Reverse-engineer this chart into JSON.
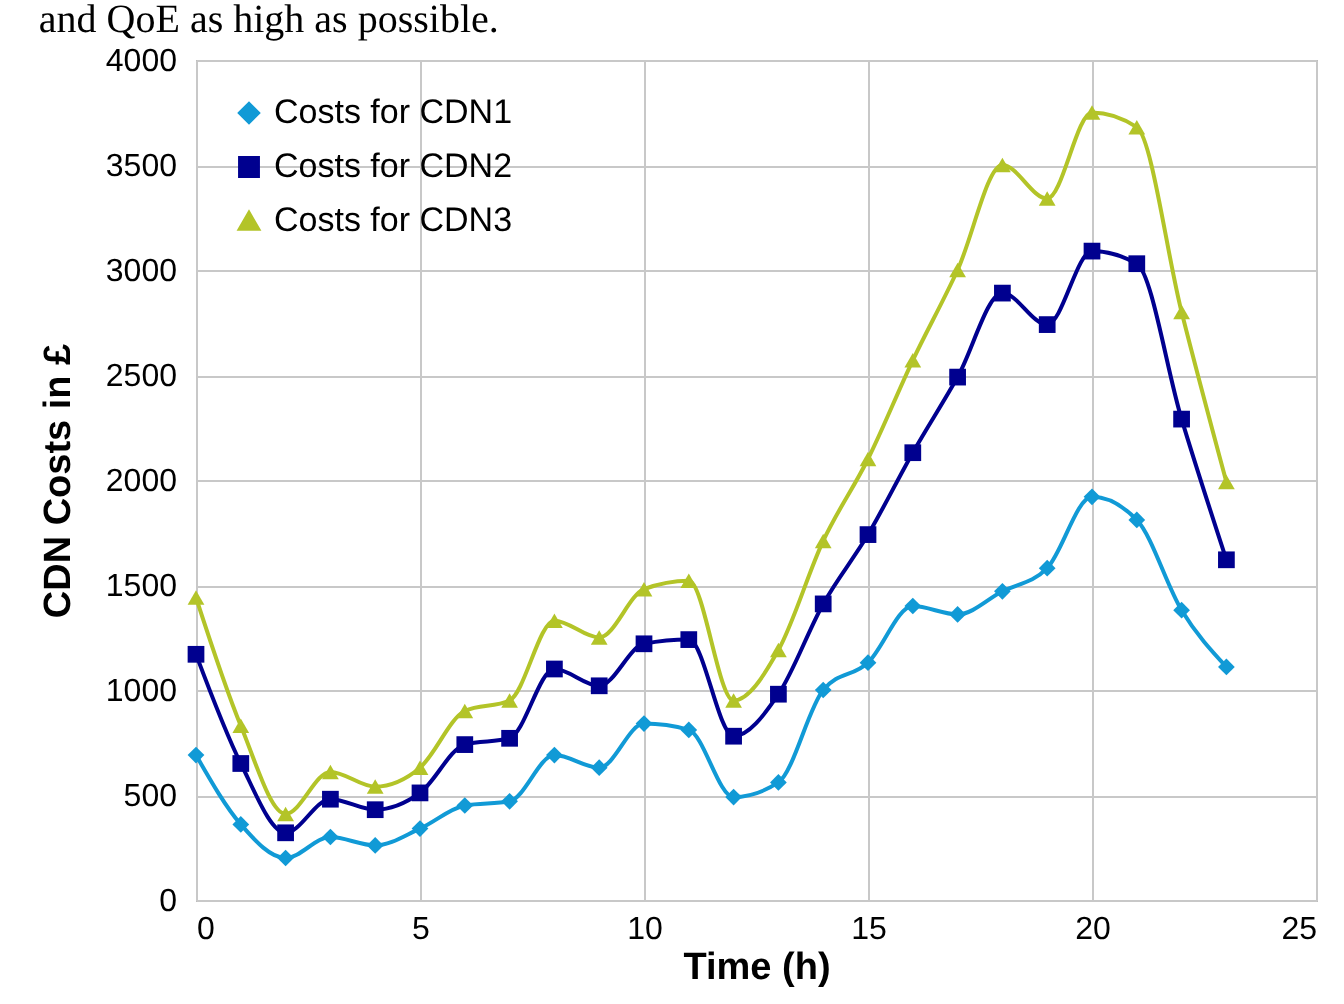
{
  "chart_data": {
    "type": "line",
    "xlabel": "Time (h)",
    "ylabel": "CDN Costs in £",
    "annotations": [
      "and QoE as high as possible."
    ],
    "x": [
      0,
      1,
      2,
      3,
      4,
      5,
      6,
      7,
      8,
      9,
      10,
      11,
      12,
      13,
      14,
      15,
      16,
      17,
      18,
      19,
      20,
      21,
      22,
      23
    ],
    "series": [
      {
        "name": "Costs for CDN1",
        "color": "#119ad6",
        "marker": "diamond",
        "values": [
          690,
          360,
          200,
          300,
          260,
          340,
          450,
          470,
          690,
          630,
          840,
          810,
          490,
          560,
          1000,
          1130,
          1400,
          1360,
          1470,
          1580,
          1920,
          1810,
          1380,
          1110
        ]
      },
      {
        "name": "Costs for CDN2",
        "color": "#00008f",
        "marker": "square",
        "values": [
          1170,
          650,
          320,
          480,
          430,
          510,
          740,
          770,
          1100,
          1020,
          1220,
          1240,
          780,
          980,
          1410,
          1740,
          2130,
          2490,
          2890,
          2740,
          3090,
          3030,
          2290,
          1620
        ]
      },
      {
        "name": "Costs for CDN3",
        "color": "#b3c428",
        "marker": "triangle",
        "values": [
          1440,
          830,
          410,
          610,
          540,
          630,
          900,
          950,
          1330,
          1250,
          1480,
          1520,
          950,
          1190,
          1710,
          2100,
          2570,
          3000,
          3500,
          3340,
          3750,
          3680,
          2800,
          1990
        ]
      }
    ],
    "xlim": [
      0,
      25
    ],
    "xticks": [
      0,
      5,
      10,
      15,
      20,
      25
    ],
    "ylim": [
      0,
      4000
    ],
    "yticks": [
      0,
      500,
      1000,
      1500,
      2000,
      2500,
      3000,
      3500,
      4000
    ],
    "grid": true,
    "legend": "top left",
    "line_style": "solid"
  }
}
